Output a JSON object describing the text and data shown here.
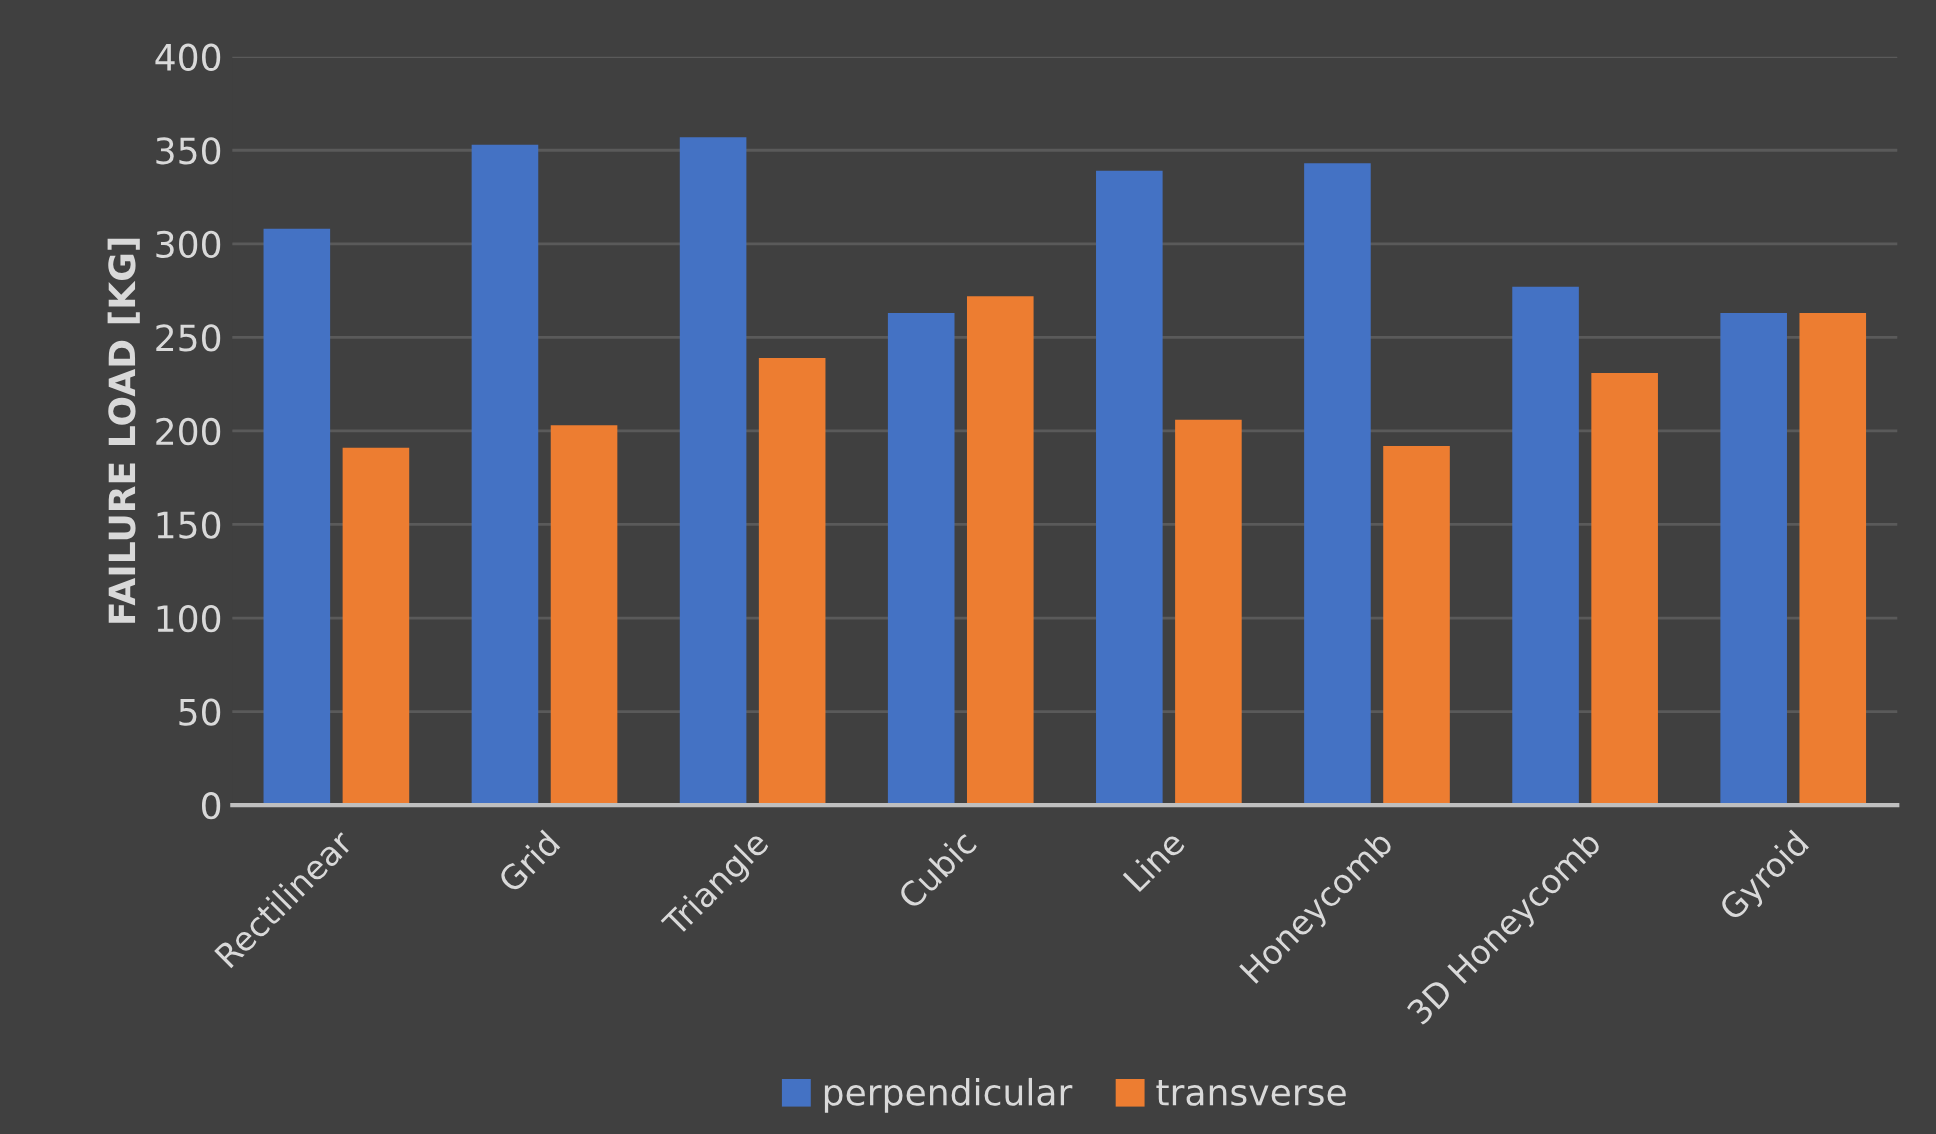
{
  "chart_data": {
    "type": "bar",
    "ylabel": "FAILURE LOAD [KG]",
    "categories": [
      "Rectilinear",
      "Grid",
      "Triangle",
      "Cubic",
      "Line",
      "Honeycomb",
      "3D Honeycomb",
      "Gyroid"
    ],
    "series": [
      {
        "name": "perpendicular",
        "color": "#4472c4",
        "values": [
          308,
          353,
          357,
          263,
          339,
          343,
          277,
          263
        ]
      },
      {
        "name": "transverse",
        "color": "#ed7d31",
        "values": [
          191,
          203,
          239,
          272,
          206,
          192,
          231,
          263
        ]
      }
    ],
    "ylim": [
      0,
      400
    ],
    "yticks": [
      0,
      50,
      100,
      150,
      200,
      250,
      300,
      350,
      400
    ],
    "grid": "y",
    "legend": "bottom"
  }
}
